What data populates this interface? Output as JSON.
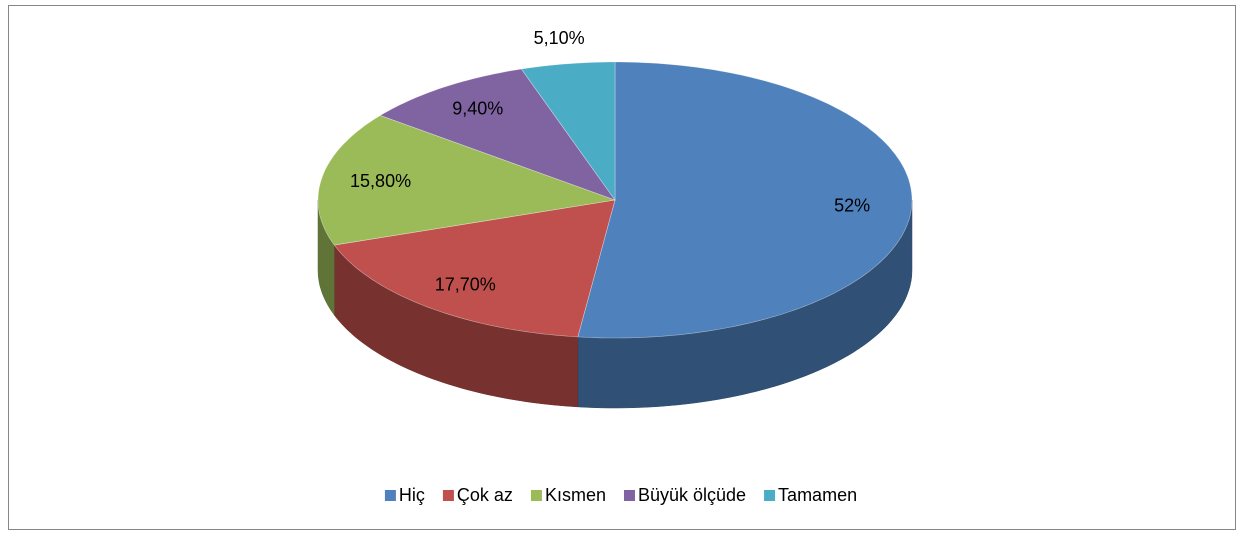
{
  "chart_data": {
    "type": "pie",
    "categories": [
      "Hiç",
      "Çok az",
      "Kısmen",
      "Büyük ölçüde",
      "Tamamen"
    ],
    "values": [
      52,
      17.7,
      15.8,
      9.4,
      5.1
    ],
    "value_labels": [
      "52%",
      "17,70%",
      "15,80%",
      "9,40%",
      "5,10%"
    ],
    "colors": [
      "#4f81bd",
      "#c0504d",
      "#9bbb59",
      "#8064a2",
      "#4bacc6"
    ],
    "legend": "bottom"
  }
}
